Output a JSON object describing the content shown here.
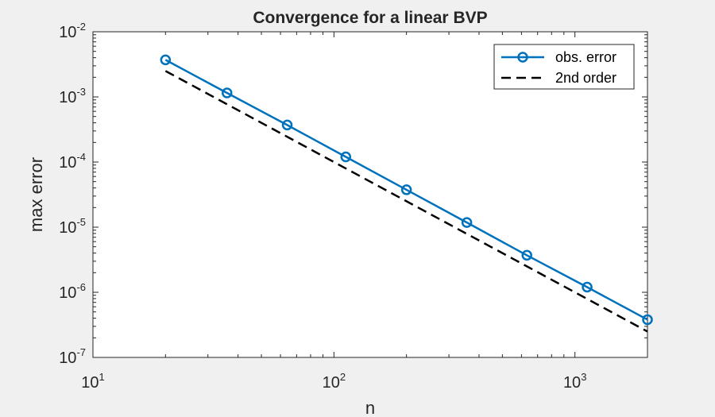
{
  "chart_data": {
    "type": "line",
    "title": "Convergence for a linear BVP",
    "xlabel": "n",
    "ylabel": "max error",
    "x_scale": "log",
    "y_scale": "log",
    "xlim": [
      10,
      2000
    ],
    "ylim": [
      1e-07,
      0.01
    ],
    "x_ticks": [
      {
        "base": "10",
        "exp": "1",
        "value": 10
      },
      {
        "base": "10",
        "exp": "2",
        "value": 100
      },
      {
        "base": "10",
        "exp": "3",
        "value": 1000
      }
    ],
    "y_ticks": [
      {
        "base": "10",
        "exp": "-2",
        "value": 0.01
      },
      {
        "base": "10",
        "exp": "-3",
        "value": 0.001
      },
      {
        "base": "10",
        "exp": "-4",
        "value": 0.0001
      },
      {
        "base": "10",
        "exp": "-5",
        "value": 1e-05
      },
      {
        "base": "10",
        "exp": "-6",
        "value": 1e-06
      },
      {
        "base": "10",
        "exp": "-7",
        "value": 1e-07
      }
    ],
    "grid": false,
    "legend_position": "top-right",
    "series": [
      {
        "name": "obs. error",
        "style": "solid-line-circle-markers",
        "color": "#0072bd",
        "x": [
          20,
          36,
          64,
          112,
          200,
          356,
          632,
          1124,
          2000
        ],
        "y": [
          0.0037,
          0.00115,
          0.00037,
          0.00012,
          3.75e-05,
          1.18e-05,
          3.7e-06,
          1.2e-06,
          3.8e-07
        ]
      },
      {
        "name": "2nd order",
        "style": "dashed-line",
        "color": "#000000",
        "x": [
          20,
          2000
        ],
        "y": [
          0.0025,
          2.5e-07
        ]
      }
    ]
  }
}
